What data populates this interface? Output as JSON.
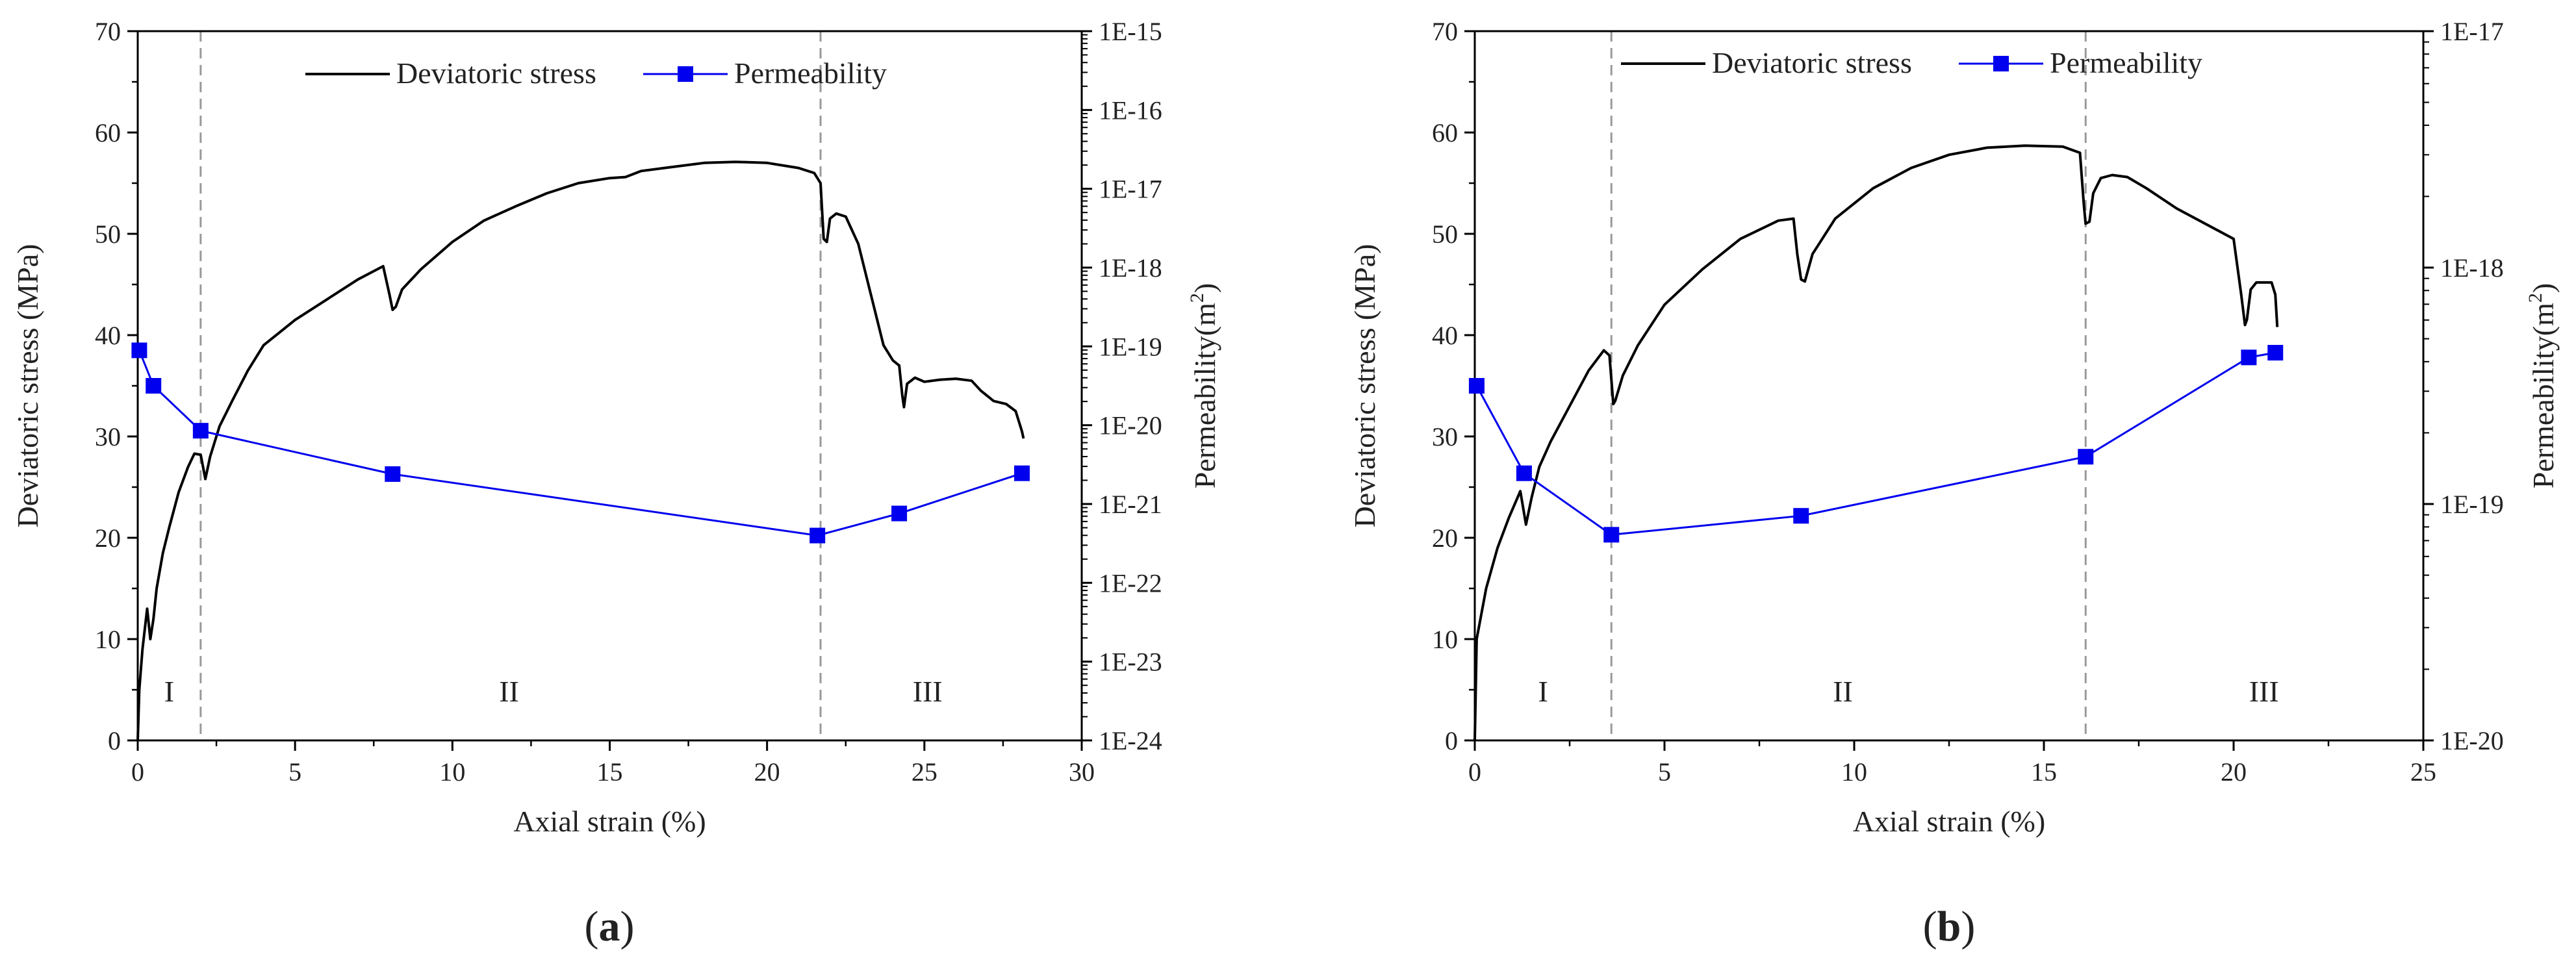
{
  "colors": {
    "stress": "#000000",
    "permeability": "#0000ee",
    "divider": "#999999",
    "axis": "#000000"
  },
  "chart_data": [
    {
      "panel_label": "a",
      "type": "line",
      "xlabel": "Axial strain (%)",
      "ylabel": "Deviatoric stress (MPa)",
      "ylabel_right": "Permeability(m",
      "ylabel_right_sup": "2",
      "ylabel_right_close": ")",
      "xlim": [
        0,
        30
      ],
      "ylim": [
        0,
        70
      ],
      "xticks": [
        0,
        5,
        10,
        15,
        20,
        25,
        30
      ],
      "yticks": [
        0,
        10,
        20,
        30,
        40,
        50,
        60,
        70
      ],
      "y2_scale": "log",
      "y2_exp_range": [
        -24,
        -15
      ],
      "y2_tick_labels": [
        "1E-24",
        "1E-23",
        "1E-22",
        "1E-21",
        "1E-20",
        "1E-19",
        "1E-18",
        "1E-17",
        "1E-16",
        "1E-15"
      ],
      "legend": [
        "Deviatoric stress",
        "Permeability"
      ],
      "regions": [
        {
          "label": "I",
          "x": 1.0
        },
        {
          "label": "II",
          "x": 11.8
        },
        {
          "label": "III",
          "x": 25.1
        }
      ],
      "dividers": [
        2.0,
        21.7
      ],
      "series": [
        {
          "name": "Deviatoric stress",
          "axis": "left",
          "x": [
            0,
            0.05,
            0.15,
            0.3,
            0.4,
            0.45,
            0.5,
            0.6,
            0.8,
            1.0,
            1.3,
            1.6,
            1.8,
            2.0,
            2.15,
            2.3,
            2.6,
            3,
            3.5,
            4,
            5,
            6,
            7,
            7.8,
            8.0,
            8.1,
            8.2,
            8.4,
            9,
            10,
            11,
            12,
            13,
            14,
            15,
            15.5,
            16,
            17,
            18,
            19,
            20,
            21,
            21.5,
            21.7,
            21.8,
            21.9,
            22.0,
            22.2,
            22.5,
            22.9,
            23.3,
            23.7,
            24.0,
            24.2,
            24.3,
            24.35,
            24.45,
            24.7,
            25.0,
            25.5,
            26.0,
            26.5,
            26.8,
            27.2,
            27.6,
            27.9,
            28.05,
            28.1,
            28.15
          ],
          "y": [
            0,
            5,
            9,
            13,
            10,
            11,
            12,
            15,
            18.5,
            21,
            24.5,
            27,
            28.3,
            28.2,
            25.8,
            28,
            31,
            33.5,
            36.5,
            39,
            41.5,
            43.5,
            45.5,
            46.8,
            44,
            42.5,
            42.8,
            44.5,
            46.5,
            49.2,
            51.3,
            52.7,
            54,
            55,
            55.5,
            55.6,
            56.2,
            56.6,
            57,
            57.1,
            57,
            56.5,
            56,
            55,
            49.5,
            49.2,
            51.5,
            52,
            51.7,
            49,
            44,
            39,
            37.5,
            37,
            34,
            32.9,
            35.2,
            35.8,
            35.4,
            35.6,
            35.7,
            35.5,
            34.5,
            33.5,
            33.2,
            32.5,
            31,
            30.5,
            29.8
          ]
        },
        {
          "name": "Permeability",
          "axis": "right",
          "x": [
            0.05,
            0.5,
            2.0,
            8.1,
            21.6,
            24.2,
            28.1
          ],
          "y_exp": [
            -19.05,
            -19.5,
            -20.07,
            -20.62,
            -21.4,
            -21.12,
            -20.61
          ]
        }
      ]
    },
    {
      "panel_label": "b",
      "type": "line",
      "xlabel": "Axial strain (%)",
      "ylabel": "Deviatoric stress (MPa)",
      "ylabel_right": "Permeability(m",
      "ylabel_right_sup": "2",
      "ylabel_right_close": ")",
      "xlim": [
        0,
        25
      ],
      "ylim": [
        0,
        70
      ],
      "xticks": [
        0,
        5,
        10,
        15,
        20,
        25
      ],
      "yticks": [
        0,
        10,
        20,
        30,
        40,
        50,
        60,
        70
      ],
      "y2_scale": "log",
      "y2_exp_range": [
        -20,
        -17
      ],
      "y2_tick_labels": [
        "1E-20",
        "1E-19",
        "1E-18",
        "1E-17"
      ],
      "legend": [
        "Deviatoric stress",
        "Permeability"
      ],
      "regions": [
        {
          "label": "I",
          "x": 1.8
        },
        {
          "label": "II",
          "x": 9.7
        },
        {
          "label": "III",
          "x": 20.8
        }
      ],
      "dividers": [
        3.6,
        16.1
      ],
      "series": [
        {
          "name": "Deviatoric stress",
          "axis": "left",
          "x": [
            0,
            0.05,
            0.3,
            0.6,
            0.9,
            1.2,
            1.35,
            1.5,
            1.7,
            2.0,
            2.5,
            3.0,
            3.4,
            3.55,
            3.65,
            3.7,
            3.9,
            4.3,
            5,
            6,
            7,
            8,
            8.4,
            8.5,
            8.6,
            8.7,
            8.9,
            9.5,
            10.5,
            11.5,
            12.5,
            13.5,
            14.5,
            15.5,
            15.95,
            16.05,
            16.1,
            16.2,
            16.3,
            16.5,
            16.8,
            17.2,
            17.7,
            18.5,
            19.5,
            20.0,
            20.2,
            20.3,
            20.35,
            20.45,
            20.6,
            21.0,
            21.1,
            21.15
          ],
          "y": [
            0,
            10,
            15,
            19,
            22,
            24.6,
            21.3,
            24,
            27,
            29.5,
            33,
            36.5,
            38.5,
            38,
            33.2,
            33.5,
            36,
            39,
            43,
            46.5,
            49.5,
            51.3,
            51.5,
            48,
            45.5,
            45.3,
            48,
            51.5,
            54.5,
            56.5,
            57.8,
            58.5,
            58.7,
            58.6,
            58,
            53,
            51,
            51.2,
            54,
            55.5,
            55.8,
            55.6,
            54.5,
            52.5,
            50.5,
            49.5,
            44,
            41,
            41.5,
            44.5,
            45.2,
            45.2,
            44,
            40.8
          ]
        },
        {
          "name": "Permeability",
          "axis": "right",
          "x": [
            0.05,
            1.3,
            3.6,
            8.6,
            16.1,
            20.4,
            21.1
          ],
          "y_exp": [
            -18.5,
            -18.87,
            -19.13,
            -19.05,
            -18.8,
            -18.38,
            -18.36
          ]
        }
      ]
    }
  ]
}
